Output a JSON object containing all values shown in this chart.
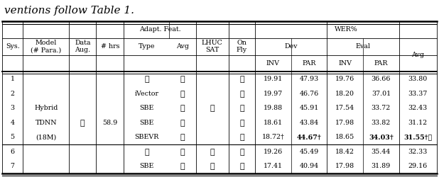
{
  "title_text": "ventions follow Table 1.",
  "rows": [
    {
      "sys": "1",
      "type": "x",
      "avg": "x",
      "lhuc": "",
      "fly": "c",
      "inv_dev": "19.91",
      "par_dev": "47.93",
      "inv_eval": "19.76",
      "par_eval": "36.66",
      "total_avg": "33.80",
      "bold": false
    },
    {
      "sys": "2",
      "type": "iVector",
      "avg": "x",
      "lhuc": "",
      "fly": "c",
      "inv_dev": "19.97",
      "par_dev": "46.76",
      "inv_eval": "18.20",
      "par_eval": "37.01",
      "total_avg": "33.37",
      "bold": false
    },
    {
      "sys": "3",
      "type": "SBE",
      "avg": "x",
      "lhuc": "x",
      "fly": "c",
      "inv_dev": "19.88",
      "par_dev": "45.91",
      "inv_eval": "17.54",
      "par_eval": "33.72",
      "total_avg": "32.43",
      "bold": false
    },
    {
      "sys": "4",
      "type": "SBE",
      "avg": "c",
      "lhuc": "",
      "fly": "x",
      "inv_dev": "18.61",
      "par_dev": "43.84",
      "inv_eval": "17.98",
      "par_eval": "33.82",
      "total_avg": "31.12",
      "bold": false
    },
    {
      "sys": "5",
      "type": "SBEVR",
      "avg": "x",
      "lhuc": "",
      "fly": "c",
      "inv_dev": "18.72",
      "par_dev": "44.67",
      "inv_eval": "18.65",
      "par_eval": "34.03",
      "total_avg": "31.55",
      "bold": true,
      "par_dev_bold": true,
      "par_eval_bold": true,
      "avg_bold": true,
      "dagger_inv_dev": true,
      "dagger_par_dev": true,
      "dagger_par_eval": true,
      "dagger_avg": true,
      "star_avg": true
    },
    {
      "sys": "6",
      "type": "x",
      "avg": "x",
      "lhuc": "c",
      "fly": "x",
      "inv_dev": "19.26",
      "par_dev": "45.49",
      "inv_eval": "18.42",
      "par_eval": "35.44",
      "total_avg": "32.33",
      "bold": false
    },
    {
      "sys": "7",
      "type": "SBE",
      "avg": "c",
      "lhuc": "c",
      "fly": "x",
      "inv_dev": "17.41",
      "par_dev": "40.94",
      "inv_eval": "17.98",
      "par_eval": "31.89",
      "total_avg": "29.16",
      "bold": false
    }
  ],
  "data_aug_row": 3,
  "hrs_row": 3,
  "data_aug_val": "c",
  "hrs_val": "58.9",
  "model_rows": [
    2,
    3,
    4
  ],
  "model_vals": [
    "Hybrid",
    "TDNN",
    "(18M)"
  ],
  "bg_color": "#ffffff",
  "text_color": "#000000"
}
